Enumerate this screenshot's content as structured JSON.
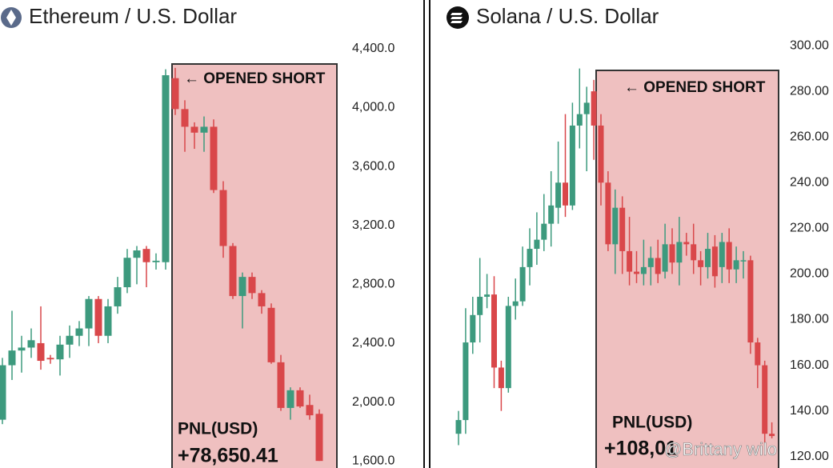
{
  "chart_data": [
    {
      "type": "candlestick",
      "title": "Ethereum / U.S. Dollar",
      "annotation": "← OPENED SHORT",
      "pnl_label": "PNL(USD)",
      "pnl_value": "+78,650.41",
      "up_color": "#3d9a7e",
      "down_color": "#d9474a",
      "ylim": [
        1552,
        4731
      ],
      "yticks": [
        {
          "value": 1600,
          "label": "1,600.0"
        },
        {
          "value": 2000,
          "label": "2,000.0"
        },
        {
          "value": 2400,
          "label": "2,400.0"
        },
        {
          "value": 2800,
          "label": "2,800.0"
        },
        {
          "value": 3200,
          "label": "3,200.0"
        },
        {
          "value": 3600,
          "label": "3,600.0"
        },
        {
          "value": 4000,
          "label": "4,000.0"
        },
        {
          "value": 4400,
          "label": "4,400.0"
        }
      ],
      "open": [
        1880,
        2250,
        2350,
        2370,
        2400,
        2300,
        2290,
        2390,
        2450,
        2500,
        2700,
        2450,
        2650,
        2780,
        2980,
        3040,
        2950,
        2950,
        4200,
        3990,
        3870,
        3830,
        3870,
        3440,
        3060,
        2720,
        2850,
        2740,
        2640,
        2270,
        1960,
        2080,
        1980,
        1920
      ],
      "high": [
        2300,
        2620,
        2450,
        2500,
        2650,
        2320,
        2450,
        2520,
        2550,
        2720,
        2720,
        2700,
        2850,
        3040,
        3060,
        3060,
        3010,
        4260,
        4270,
        4050,
        3900,
        3940,
        3920,
        3500,
        3080,
        2880,
        2880,
        2760,
        2670,
        2320,
        2100,
        2100,
        2050,
        1950
      ],
      "low": [
        1850,
        2150,
        2200,
        2300,
        2220,
        2260,
        2180,
        2300,
        2380,
        2380,
        2400,
        2400,
        2600,
        2740,
        2800,
        2780,
        2900,
        2900,
        3950,
        3700,
        3720,
        3700,
        3420,
        2980,
        2700,
        2500,
        2700,
        2600,
        2260,
        1940,
        1880,
        1960,
        1880,
        1600
      ],
      "close": [
        2250,
        2350,
        2370,
        2420,
        2280,
        2290,
        2390,
        2450,
        2500,
        2700,
        2450,
        2650,
        2780,
        2980,
        3030,
        2950,
        2960,
        4220,
        3990,
        3870,
        3830,
        3870,
        3440,
        3060,
        2720,
        2850,
        2740,
        2650,
        2270,
        1960,
        2080,
        1970,
        1910,
        1600
      ]
    },
    {
      "type": "candlestick",
      "title": "Solana / U.S. Dollar",
      "annotation": "← OPENED SHORT",
      "pnl_label": "PNL(USD)",
      "pnl_value": "+108,01",
      "watermark": "@Brittany wilo",
      "up_color": "#3d9a7e",
      "down_color": "#d9474a",
      "ylim": [
        115,
        320
      ],
      "yticks": [
        {
          "value": 120,
          "label": "120.00"
        },
        {
          "value": 140,
          "label": "140.00"
        },
        {
          "value": 160,
          "label": "160.00"
        },
        {
          "value": 180,
          "label": "180.00"
        },
        {
          "value": 200,
          "label": "200.00"
        },
        {
          "value": 220,
          "label": "220.00"
        },
        {
          "value": 240,
          "label": "240.00"
        },
        {
          "value": 260,
          "label": "260.00"
        },
        {
          "value": 280,
          "label": "280.00"
        },
        {
          "value": 300,
          "label": "300.00"
        }
      ],
      "open": [
        130,
        136,
        170,
        182,
        190,
        191,
        159,
        150,
        186,
        188,
        203,
        211,
        215,
        222,
        229,
        240,
        230,
        265,
        270,
        280,
        265,
        240,
        213,
        229,
        210,
        201,
        200,
        203,
        207,
        201,
        213,
        205,
        214,
        213,
        206,
        203,
        212,
        203,
        214,
        202,
        206,
        206,
        170,
        160,
        130
      ],
      "high": [
        140,
        185,
        190,
        207,
        200,
        199,
        162,
        190,
        198,
        212,
        220,
        227,
        235,
        245,
        258,
        270,
        275,
        290,
        282,
        285,
        270,
        245,
        237,
        234,
        225,
        210,
        215,
        212,
        215,
        222,
        220,
        225,
        218,
        222,
        210,
        218,
        217,
        218,
        220,
        212,
        210,
        208,
        172,
        162,
        135
      ],
      "low": [
        125,
        130,
        165,
        170,
        185,
        150,
        140,
        148,
        180,
        186,
        195,
        204,
        210,
        212,
        222,
        225,
        228,
        255,
        245,
        250,
        230,
        210,
        200,
        200,
        195,
        196,
        195,
        195,
        196,
        198,
        200,
        195,
        208,
        200,
        195,
        198,
        194,
        196,
        196,
        196,
        198,
        165,
        150,
        125,
        128
      ],
      "close": [
        136,
        170,
        182,
        190,
        191,
        159,
        150,
        186,
        188,
        203,
        211,
        215,
        222,
        230,
        240,
        230,
        265,
        270,
        275,
        265,
        240,
        213,
        229,
        210,
        201,
        200,
        203,
        207,
        200,
        213,
        205,
        214,
        213,
        206,
        203,
        211,
        199,
        214,
        202,
        206,
        206,
        170,
        160,
        130,
        129
      ]
    }
  ]
}
